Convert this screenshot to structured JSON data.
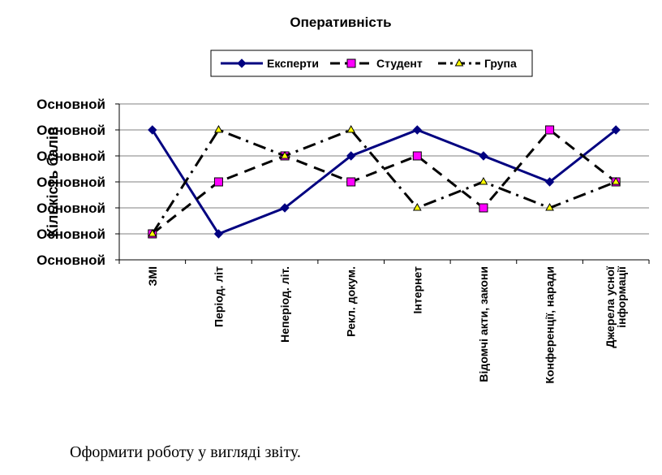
{
  "chart_data": {
    "type": "line",
    "title": "Оперативність",
    "ylabel": "Кількість балів",
    "ytick_labels": [
      "Основной",
      "Основной",
      "Основной",
      "Основной",
      "Основной",
      "Основной",
      "Основной"
    ],
    "ylim": [
      0,
      6
    ],
    "grid": true,
    "legend_position": "top",
    "categories": [
      "ЗМІ",
      "Період. літ",
      "Неперіод. літ.",
      "Рекл. докум.",
      "Інтернет",
      "Відомчі акти, закони",
      "Конференції, наради",
      "Джерела усної інформації"
    ],
    "series": [
      {
        "name": "Експерти",
        "values": [
          5,
          1,
          2,
          4,
          5,
          4,
          3,
          5
        ],
        "color": "#000080",
        "marker": "diamond",
        "dash": "solid"
      },
      {
        "name": "Студент",
        "values": [
          1,
          3,
          4,
          3,
          4,
          2,
          5,
          3
        ],
        "color": "#000000",
        "marker": "square",
        "marker_color": "#ff00ff",
        "dash": "dash"
      },
      {
        "name": "Група",
        "values": [
          1,
          5,
          4,
          5,
          2,
          3,
          2,
          3
        ],
        "color": "#000000",
        "marker": "triangle",
        "marker_color": "#ffff00",
        "dash": "dashdot"
      }
    ]
  },
  "caption": "Оформити роботу у вигляді звіту."
}
